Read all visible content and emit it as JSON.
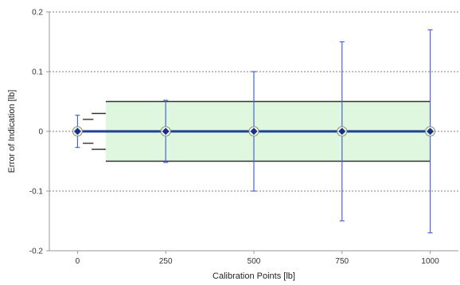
{
  "chart_data": {
    "type": "line",
    "xlabel": "Calibration Points [lb]",
    "ylabel": "Error of Indication [lb]",
    "xlim": [
      -80,
      1080
    ],
    "ylim": [
      -0.2,
      0.2
    ],
    "x_ticks": [
      0,
      250,
      500,
      750,
      1000
    ],
    "x_tick_labels": [
      "0",
      "250",
      "500",
      "750",
      "1000"
    ],
    "y_ticks": [
      -0.2,
      -0.1,
      0,
      0.1,
      0.2
    ],
    "y_tick_labels": [
      "-0.2",
      "-0.1",
      "0",
      "0.1",
      "0.2"
    ],
    "grid": "horizontal dashed",
    "series": [
      {
        "x": [
          0,
          250,
          500,
          750,
          1000
        ],
        "values": [
          0,
          0,
          0,
          0,
          0
        ],
        "error": [
          0.027,
          0.052,
          0.1,
          0.15,
          0.17
        ],
        "color": "#1f3f9a",
        "error_color": "#4a63d8"
      }
    ],
    "tolerance_band": {
      "x_range": [
        80,
        1000
      ],
      "lower": -0.05,
      "upper": 0.05,
      "fill": "#dff7df",
      "edge": "#333333"
    },
    "tolerance_steps": [
      {
        "x_range": [
          15,
          45
        ],
        "lower": -0.02,
        "upper": 0.02
      },
      {
        "x_range": [
          40,
          80
        ],
        "lower": -0.03,
        "upper": 0.03
      }
    ]
  }
}
